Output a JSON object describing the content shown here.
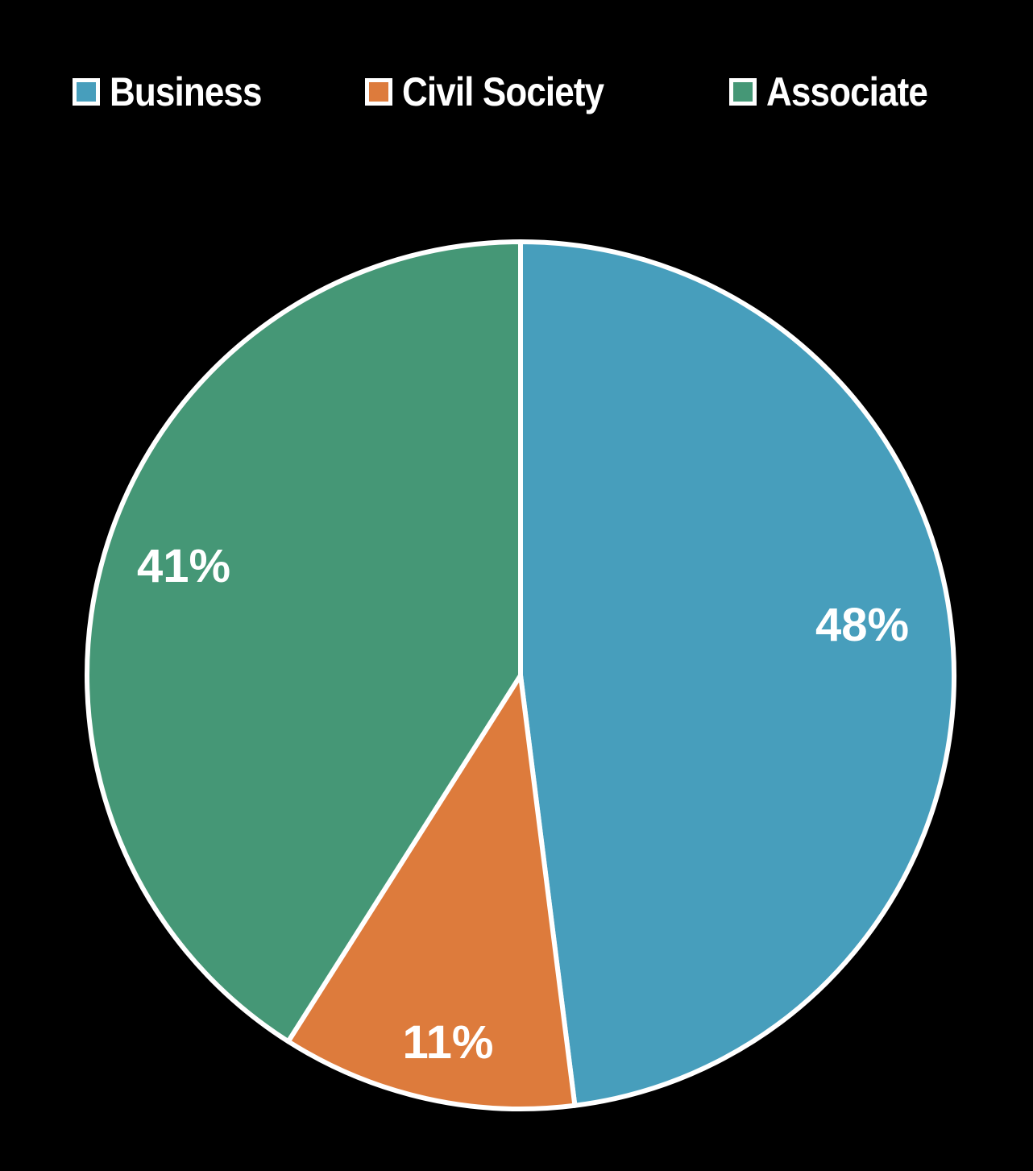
{
  "chart_data": {
    "type": "pie",
    "title": "",
    "categories": [
      "Business",
      "Civil Society",
      "Associate"
    ],
    "values": [
      48,
      11,
      41
    ],
    "labels": [
      "48%",
      "11%",
      "41%"
    ],
    "colors": [
      "#479EBC",
      "#DD7B3C",
      "#459776"
    ],
    "start_angle_deg": 0,
    "direction": "clockwise",
    "legend_position": "top",
    "slice_border_color": "#FFFFFF",
    "background": "#000000"
  },
  "legend": {
    "items": [
      {
        "label": "Business",
        "color": "#479EBC"
      },
      {
        "label": "Civil Society",
        "color": "#DD7B3C"
      },
      {
        "label": "Associate",
        "color": "#459776"
      }
    ]
  },
  "slices": {
    "business": {
      "label": "48%"
    },
    "civil_society": {
      "label": "11%"
    },
    "associate": {
      "label": "41%"
    }
  }
}
